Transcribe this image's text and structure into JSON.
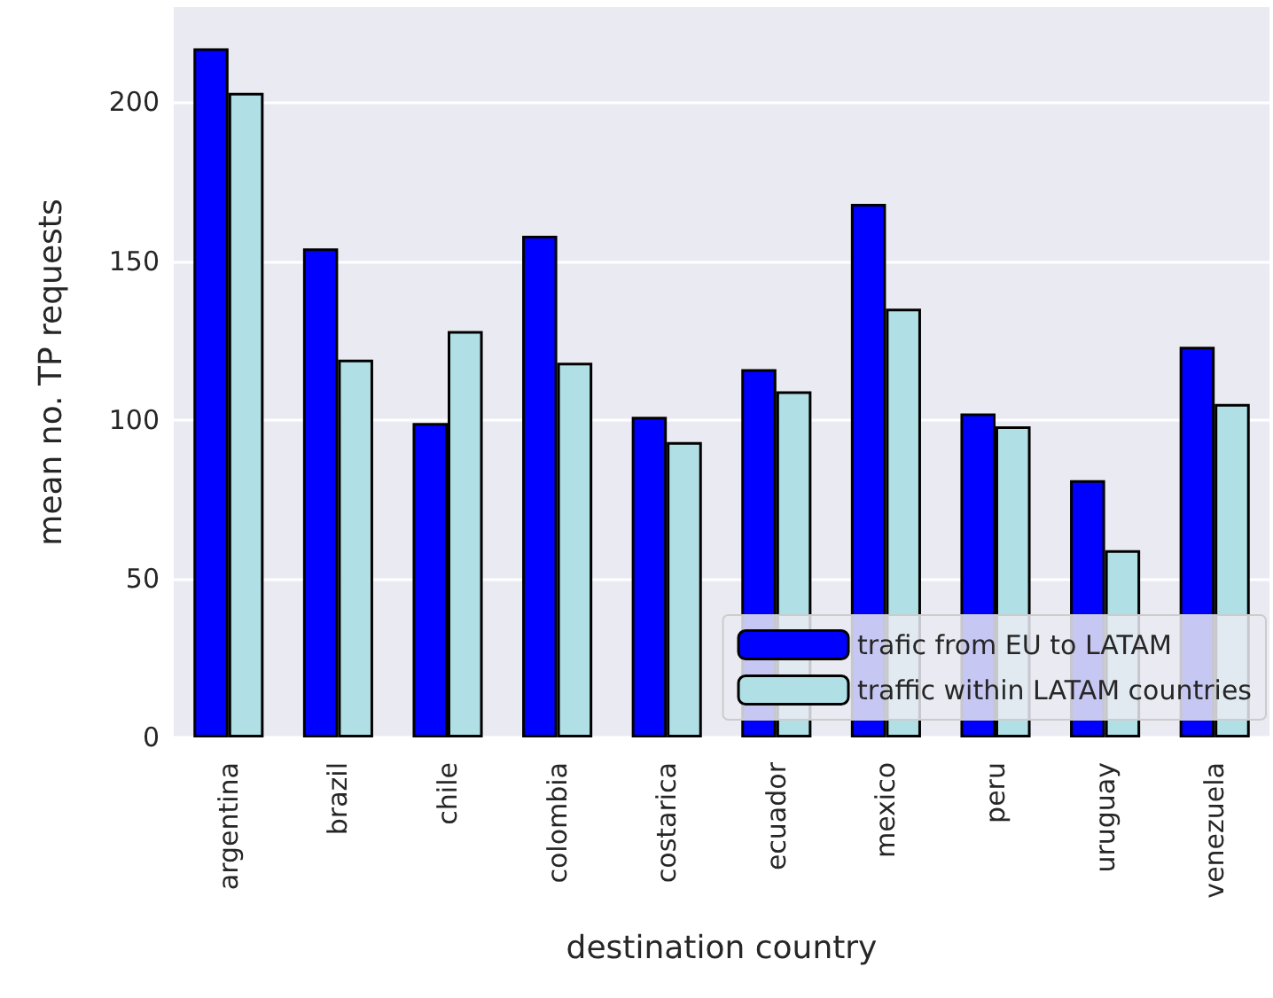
{
  "chart_data": {
    "type": "bar",
    "xlabel": "destination country",
    "ylabel": "mean no. TP requests",
    "categories": [
      "argentina",
      "brazil",
      "chile",
      "colombia",
      "costarica",
      "ecuador",
      "mexico",
      "peru",
      "uruguay",
      "venezuela"
    ],
    "series": [
      {
        "name": "trafic from EU to LATAM",
        "color": "#0000ff",
        "values": [
          217,
          154,
          99,
          158,
          101,
          116,
          168,
          102,
          81,
          123
        ]
      },
      {
        "name": "traffic within LATAM countries",
        "color": "#b0e0e6",
        "values": [
          203,
          119,
          128,
          118,
          93,
          109,
          135,
          98,
          59,
          105
        ]
      }
    ],
    "ylim": [
      0,
      230
    ],
    "yticks": [
      0,
      50,
      100,
      150,
      200
    ],
    "grid": "y",
    "legend": "bottom right"
  }
}
